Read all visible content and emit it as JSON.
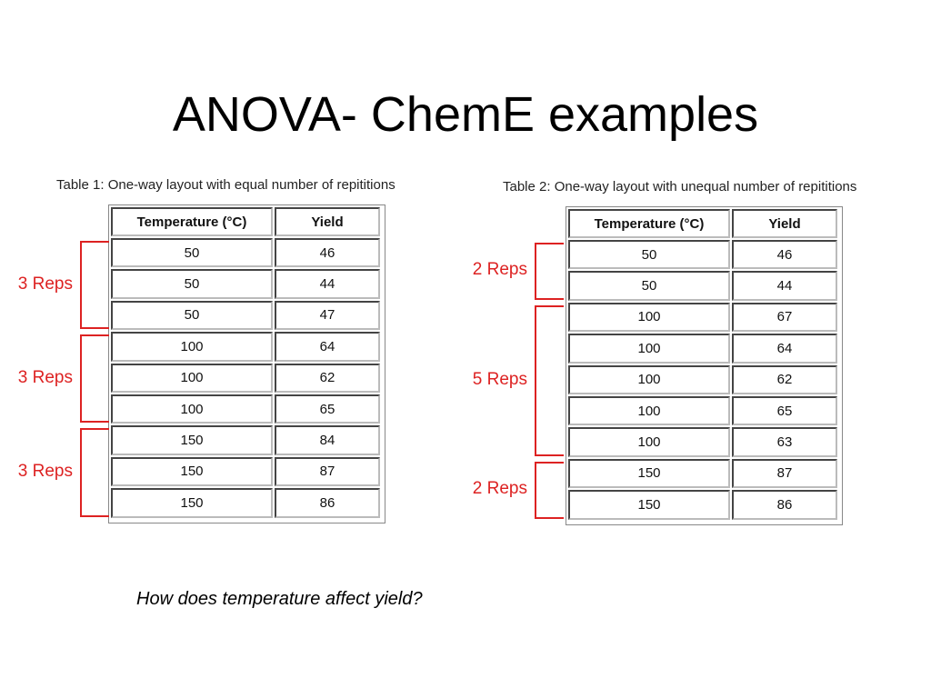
{
  "title": "ANOVA- ChemE examples",
  "tables": [
    {
      "caption": "Table 1: One-way layout with equal number of repititions",
      "header": [
        "Temperature (°C)",
        "Yield"
      ],
      "groups": [
        {
          "label": "3 Reps",
          "rows": [
            [
              50,
              46
            ],
            [
              50,
              44
            ],
            [
              50,
              47
            ]
          ]
        },
        {
          "label": "3 Reps",
          "rows": [
            [
              100,
              64
            ],
            [
              100,
              62
            ],
            [
              100,
              65
            ]
          ]
        },
        {
          "label": "3 Reps",
          "rows": [
            [
              150,
              84
            ],
            [
              150,
              87
            ],
            [
              150,
              86
            ]
          ]
        }
      ]
    },
    {
      "caption": "Table 2: One-way layout with unequal number of repititions",
      "header": [
        "Temperature (°C)",
        "Yield"
      ],
      "groups": [
        {
          "label": "2 Reps",
          "rows": [
            [
              50,
              46
            ],
            [
              50,
              44
            ]
          ]
        },
        {
          "label": "5 Reps",
          "rows": [
            [
              100,
              67
            ],
            [
              100,
              64
            ],
            [
              100,
              62
            ],
            [
              100,
              65
            ],
            [
              100,
              63
            ]
          ]
        },
        {
          "label": "2 Reps",
          "rows": [
            [
              150,
              87
            ],
            [
              150,
              86
            ]
          ]
        }
      ]
    }
  ],
  "question": "How does temperature affect yield?"
}
